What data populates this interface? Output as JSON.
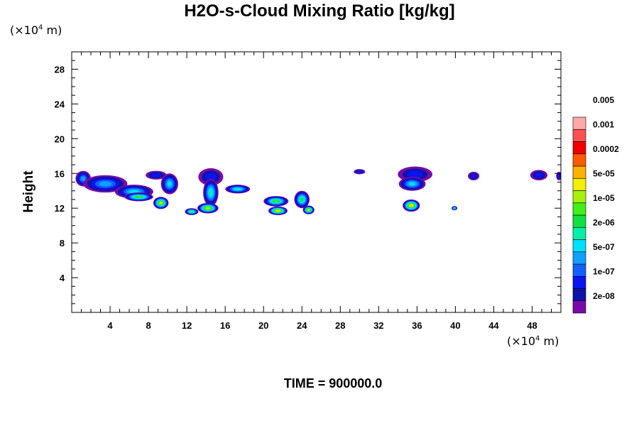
{
  "chart_data": {
    "type": "heatmap",
    "title": "H2O-s-Cloud Mixing Ratio [kg/kg]",
    "ylabel": "Height",
    "x_unit_prefix": "(×10",
    "x_unit_exp": "4",
    "x_unit_suffix": " m)",
    "y_unit_prefix": "(×10",
    "y_unit_exp": "4",
    "y_unit_suffix": " m)",
    "xlim": [
      0,
      51
    ],
    "ylim": [
      0,
      30
    ],
    "x_ticks": [
      4,
      8,
      12,
      16,
      20,
      24,
      28,
      32,
      36,
      40,
      44,
      48
    ],
    "y_ticks": [
      4,
      8,
      12,
      16,
      20,
      24,
      28
    ],
    "time_label": "TIME = 900000.0",
    "legend_labels": [
      "2e-08",
      "1e-07",
      "5e-07",
      "2e-06",
      "1e-05",
      "5e-05",
      "0.0002",
      "0.001",
      "0.005"
    ],
    "colors": {
      "levels": [
        "#7a0aa8",
        "#0c14a8",
        "#0a14f0",
        "#1460ff",
        "#10a0ff",
        "#00e0ff",
        "#00f0a8",
        "#10e040",
        "#40f018",
        "#a8f010",
        "#f0f000",
        "#ffb000",
        "#ff5a00",
        "#f00000",
        "#ff5050",
        "#ffa8a8"
      ]
    },
    "cloud_blobs": [
      {
        "x": 1.2,
        "y": 15.4,
        "rx": 0.8,
        "ry": 0.9,
        "level": 4
      },
      {
        "x": 3.5,
        "y": 14.8,
        "rx": 2.3,
        "ry": 1.0,
        "level": 4
      },
      {
        "x": 6.5,
        "y": 13.9,
        "rx": 2.0,
        "ry": 0.8,
        "level": 5
      },
      {
        "x": 7.0,
        "y": 13.3,
        "rx": 1.5,
        "ry": 0.5,
        "level": 8
      },
      {
        "x": 9.3,
        "y": 12.6,
        "rx": 0.8,
        "ry": 0.7,
        "level": 10
      },
      {
        "x": 8.8,
        "y": 15.8,
        "rx": 1.1,
        "ry": 0.5,
        "level": 2
      },
      {
        "x": 10.2,
        "y": 14.8,
        "rx": 0.9,
        "ry": 1.2,
        "level": 5
      },
      {
        "x": 14.5,
        "y": 15.6,
        "rx": 1.3,
        "ry": 1.0,
        "level": 2
      },
      {
        "x": 14.5,
        "y": 13.8,
        "rx": 0.8,
        "ry": 1.6,
        "level": 6
      },
      {
        "x": 14.2,
        "y": 12.0,
        "rx": 1.1,
        "ry": 0.6,
        "level": 10
      },
      {
        "x": 12.5,
        "y": 11.6,
        "rx": 0.7,
        "ry": 0.4,
        "level": 8
      },
      {
        "x": 17.3,
        "y": 14.2,
        "rx": 1.3,
        "ry": 0.5,
        "level": 6
      },
      {
        "x": 21.3,
        "y": 12.8,
        "rx": 1.3,
        "ry": 0.6,
        "level": 8
      },
      {
        "x": 21.5,
        "y": 11.7,
        "rx": 1.0,
        "ry": 0.5,
        "level": 11
      },
      {
        "x": 24.0,
        "y": 13.0,
        "rx": 0.8,
        "ry": 1.0,
        "level": 7
      },
      {
        "x": 24.7,
        "y": 11.8,
        "rx": 0.6,
        "ry": 0.5,
        "level": 10
      },
      {
        "x": 30.0,
        "y": 16.2,
        "rx": 0.6,
        "ry": 0.3,
        "level": 2
      },
      {
        "x": 35.8,
        "y": 15.9,
        "rx": 1.8,
        "ry": 0.9,
        "level": 2
      },
      {
        "x": 35.5,
        "y": 14.8,
        "rx": 1.4,
        "ry": 0.8,
        "level": 5
      },
      {
        "x": 35.4,
        "y": 12.3,
        "rx": 0.9,
        "ry": 0.7,
        "level": 11
      },
      {
        "x": 39.9,
        "y": 12.0,
        "rx": 0.3,
        "ry": 0.25,
        "level": 7
      },
      {
        "x": 41.9,
        "y": 15.7,
        "rx": 0.6,
        "ry": 0.5,
        "level": 2
      },
      {
        "x": 48.7,
        "y": 15.8,
        "rx": 0.9,
        "ry": 0.6,
        "level": 2
      },
      {
        "x": 50.8,
        "y": 15.7,
        "rx": 0.3,
        "ry": 0.5,
        "level": 2
      }
    ]
  }
}
